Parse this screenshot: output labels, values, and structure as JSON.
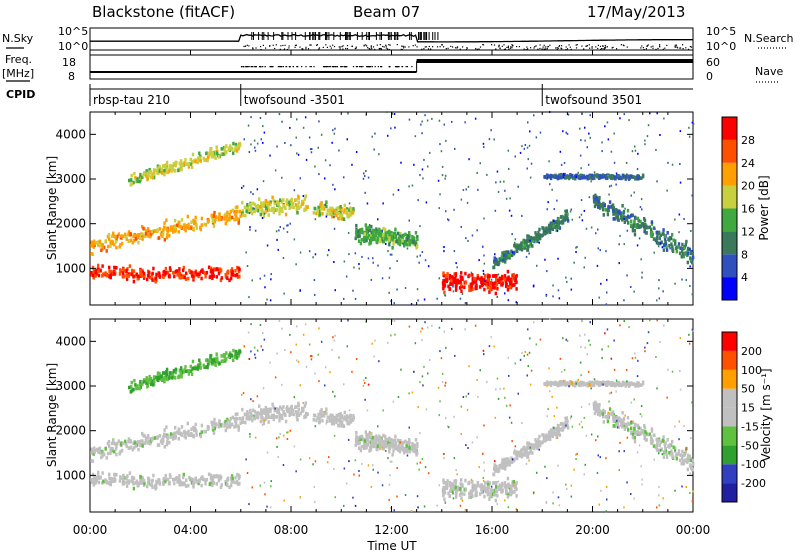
{
  "header": {
    "station": "Blackstone (fitACF)",
    "beam": "Beam 07",
    "date": "17/May/2013"
  },
  "side_labels": {
    "nsky": "N.Sky",
    "freq": "Freq.",
    "freq_unit": "[MHz]",
    "cpid": "CPID",
    "nsearch": "N.Search",
    "nave": "Nave"
  },
  "noise_axis": {
    "left_top": "10^5",
    "left_bottom": "10^0",
    "right_top": "10^5",
    "right_bottom": "10^0"
  },
  "freq_axis": {
    "left_ticks": [
      "18",
      "8"
    ],
    "right_ticks": [
      "60",
      "0"
    ]
  },
  "cpid_segments": [
    {
      "label": "rbsp-tau 210",
      "start_hour": 0
    },
    {
      "label": "twofsound -3501",
      "start_hour": 6
    },
    {
      "label": "twofsound 3501",
      "start_hour": 18
    }
  ],
  "colors": {
    "power_scale": [
      "#0000ff",
      "#3050c0",
      "#3a7a5a",
      "#3fa83f",
      "#c8d040",
      "#ffa000",
      "#ff5000",
      "#ff0000"
    ],
    "velocity_scale": [
      "#ff0000",
      "#ff5000",
      "#ffa000",
      "#c0c0c0",
      "#c0c0c0",
      "#60c040",
      "#30a030",
      "#3040c0",
      "#2020a0"
    ]
  },
  "chart_data": [
    {
      "type": "heatmap",
      "ylabel": "Slant Range [km]",
      "xlabel": "",
      "xlim": [
        0,
        24
      ],
      "ylim": [
        180,
        4500
      ],
      "x_tick_labels": [
        "00:00",
        "04:00",
        "08:00",
        "12:00",
        "16:00",
        "20:00",
        "00:00"
      ],
      "y_tick_labels": [
        "1000",
        "2000",
        "3000",
        "4000"
      ],
      "colorbar": {
        "label": "Power [dB]",
        "range": [
          0,
          32
        ],
        "tick_labels": [
          "4",
          "8",
          "12",
          "16",
          "20",
          "24",
          "28"
        ]
      }
    },
    {
      "type": "heatmap",
      "ylabel": "Slant Range [km]",
      "xlabel": "Time UT",
      "xlim": [
        0,
        24
      ],
      "ylim": [
        180,
        4500
      ],
      "x_tick_labels": [
        "00:00",
        "04:00",
        "08:00",
        "12:00",
        "16:00",
        "20:00",
        "00:00"
      ],
      "y_tick_labels": [
        "1000",
        "2000",
        "3000",
        "4000"
      ],
      "colorbar": {
        "label": "Velocity [m s⁻¹]",
        "range": [
          -250,
          250
        ],
        "tick_labels": [
          "200",
          "100",
          "50",
          "15",
          "-15",
          "-50",
          "-100",
          "-200"
        ]
      }
    }
  ]
}
